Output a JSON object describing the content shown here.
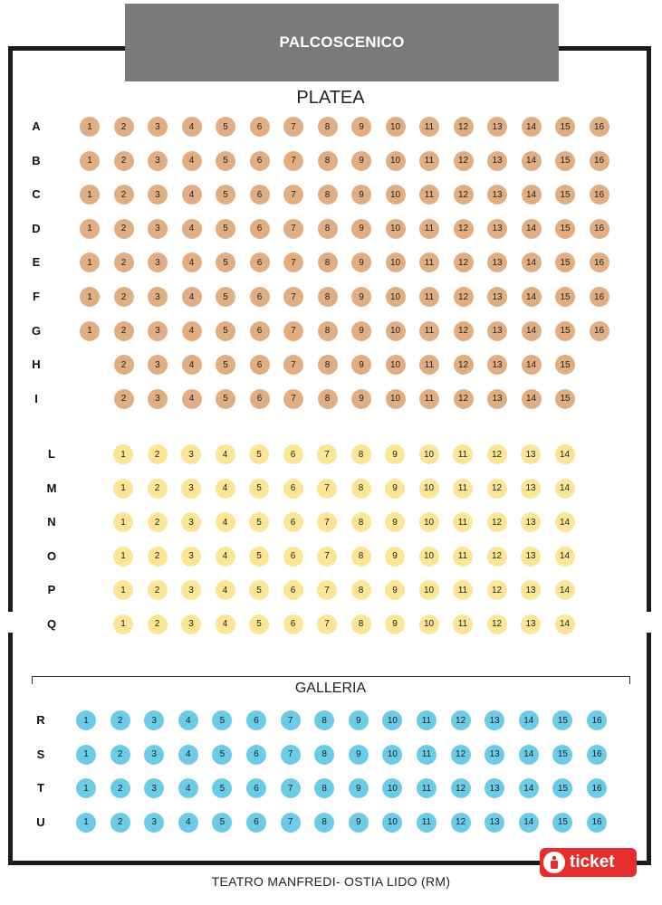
{
  "stage": {
    "label": "PALCOSCENICO"
  },
  "sections": [
    {
      "title": "PLATEA",
      "color": "#e0ae82",
      "rows": [
        {
          "label": "A",
          "seats": [
            1,
            2,
            3,
            4,
            5,
            6,
            7,
            8,
            9,
            10,
            11,
            12,
            13,
            14,
            15,
            16
          ]
        },
        {
          "label": "B",
          "seats": [
            1,
            2,
            3,
            4,
            5,
            6,
            7,
            8,
            9,
            10,
            11,
            12,
            13,
            14,
            15,
            16
          ]
        },
        {
          "label": "C",
          "seats": [
            1,
            2,
            3,
            4,
            5,
            6,
            7,
            8,
            9,
            10,
            11,
            12,
            13,
            14,
            15,
            16
          ]
        },
        {
          "label": "D",
          "seats": [
            1,
            2,
            3,
            4,
            5,
            6,
            7,
            8,
            9,
            10,
            11,
            12,
            13,
            14,
            15,
            16
          ]
        },
        {
          "label": "E",
          "seats": [
            1,
            2,
            3,
            4,
            5,
            6,
            7,
            8,
            9,
            10,
            11,
            12,
            13,
            14,
            15,
            16
          ]
        },
        {
          "label": "F",
          "seats": [
            1,
            2,
            3,
            4,
            5,
            6,
            7,
            8,
            9,
            10,
            11,
            12,
            13,
            14,
            15,
            16
          ]
        },
        {
          "label": "G",
          "seats": [
            1,
            2,
            3,
            4,
            5,
            6,
            7,
            8,
            9,
            10,
            11,
            12,
            13,
            14,
            15,
            16
          ]
        },
        {
          "label": "H",
          "seats": [
            2,
            3,
            4,
            5,
            6,
            7,
            8,
            9,
            10,
            11,
            12,
            13,
            14,
            15
          ]
        },
        {
          "label": "I",
          "seats": [
            2,
            3,
            4,
            5,
            6,
            7,
            8,
            9,
            10,
            11,
            12,
            13,
            14,
            15
          ]
        }
      ]
    },
    {
      "title": "",
      "color": "#fce696",
      "rows": [
        {
          "label": "L",
          "seats": [
            1,
            2,
            3,
            4,
            5,
            6,
            7,
            8,
            9,
            10,
            11,
            12,
            13,
            14
          ]
        },
        {
          "label": "M",
          "seats": [
            1,
            2,
            3,
            4,
            5,
            6,
            7,
            8,
            9,
            10,
            11,
            12,
            13,
            14
          ]
        },
        {
          "label": "N",
          "seats": [
            1,
            2,
            3,
            4,
            5,
            6,
            7,
            8,
            9,
            10,
            11,
            12,
            13,
            14
          ]
        },
        {
          "label": "O",
          "seats": [
            1,
            2,
            3,
            4,
            5,
            6,
            7,
            8,
            9,
            10,
            11,
            12,
            13,
            14
          ]
        },
        {
          "label": "P",
          "seats": [
            1,
            2,
            3,
            4,
            5,
            6,
            7,
            8,
            9,
            10,
            11,
            12,
            13,
            14
          ]
        },
        {
          "label": "Q",
          "seats": [
            1,
            2,
            3,
            4,
            5,
            6,
            7,
            8,
            9,
            10,
            11,
            12,
            13,
            14
          ]
        }
      ]
    },
    {
      "title": "GALLERIA",
      "color": "#6ccbe6",
      "rows": [
        {
          "label": "R",
          "seats": [
            1,
            2,
            3,
            4,
            5,
            6,
            7,
            8,
            9,
            10,
            11,
            12,
            13,
            14,
            15,
            16
          ]
        },
        {
          "label": "S",
          "seats": [
            1,
            2,
            3,
            4,
            5,
            6,
            7,
            8,
            9,
            10,
            11,
            12,
            13,
            14,
            15,
            16
          ]
        },
        {
          "label": "T",
          "seats": [
            1,
            2,
            3,
            4,
            5,
            6,
            7,
            8,
            9,
            10,
            11,
            12,
            13,
            14,
            15,
            16
          ]
        },
        {
          "label": "U",
          "seats": [
            1,
            2,
            3,
            4,
            5,
            6,
            7,
            8,
            9,
            10,
            11,
            12,
            13,
            14,
            15,
            16
          ]
        }
      ]
    }
  ],
  "logo": {
    "icon": "ticket-icon",
    "text": "ticket",
    "color": "#e52d2d"
  },
  "footer": {
    "text": "TEATRO MANFREDI- OSTIA LIDO (RM)"
  }
}
